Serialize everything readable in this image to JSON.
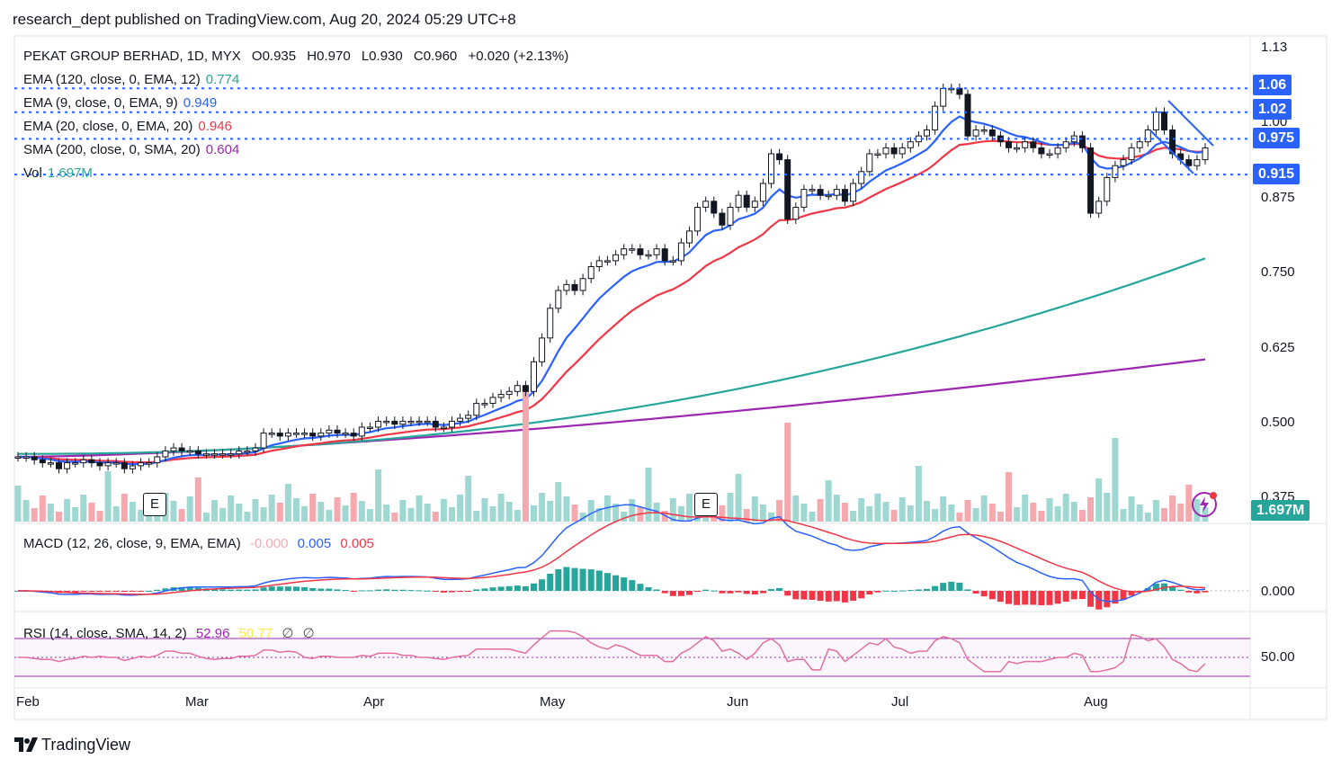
{
  "header": {
    "publisher_line": "research_dept published on TradingView.com, Aug 20, 2024 05:29 UTC+8"
  },
  "symbol_line": {
    "name": "PEKAT GROUP BERHAD, 1D, MYX",
    "open": "O0.935",
    "high": "H0.970",
    "low": "L0.930",
    "close": "C0.960",
    "change": "+0.020 (+2.13%)"
  },
  "indicators": [
    {
      "label": "EMA (120, close, 0, EMA, 12)",
      "value": "0.774",
      "color": "#26a69a"
    },
    {
      "label": "EMA (9, close, 0, EMA, 9)",
      "value": "0.949",
      "color": "#2962ff"
    },
    {
      "label": "EMA (20, close, 0, EMA, 20)",
      "value": "0.946",
      "color": "#f23645"
    },
    {
      "label": "SMA (200, close, 0, SMA, 20)",
      "value": "0.604",
      "color": "#9c27b0"
    },
    {
      "label": "Vol",
      "value": "1.697M",
      "color": "#26a69a"
    }
  ],
  "macd_legend": {
    "label": "MACD (12, 26, close, 9, EMA, EMA)",
    "hist": "-0.000",
    "macd": "0.005",
    "signal": "0.005"
  },
  "rsi_legend": {
    "label": "RSI (14, close, SMA, 14, 2)",
    "rsi": "52.96",
    "ma": "50.77",
    "a": "∅",
    "b": "∅"
  },
  "price_badges": {
    "p106": "1.06",
    "p102": "1.02",
    "p0975": "0.975",
    "p0915": "0.915",
    "vol": "1.697M"
  },
  "y_axis_labels": [
    "1.13",
    "1.00",
    "0.875",
    "0.750",
    "0.625",
    "0.500",
    "0.375"
  ],
  "macd_axis_label": "0.000",
  "rsi_axis_label": "50.00",
  "x_axis_labels": [
    "Feb",
    "Mar",
    "Apr",
    "May",
    "Jun",
    "Jul",
    "Aug"
  ],
  "earnings_marker": "E",
  "brand": "TradingView",
  "colors": {
    "up": "#ffffff",
    "down": "#131722",
    "ema9": "#2962ff",
    "ema20": "#f23645",
    "ema120": "#26a69a",
    "sma200": "#9c27b0",
    "level": "#2962ff"
  },
  "chart_data": {
    "type": "candlestick",
    "title": "PEKAT GROUP BERHAD, 1D, MYX",
    "ylim": [
      0.35,
      1.15
    ],
    "horizontal_levels": [
      1.06,
      1.02,
      0.975,
      0.915
    ],
    "x_month_labels": [
      "Feb",
      "Mar",
      "Apr",
      "May",
      "Jun",
      "Jul",
      "Aug"
    ],
    "close_series": [
      0.44,
      0.44,
      0.435,
      0.43,
      0.43,
      0.42,
      0.43,
      0.43,
      0.435,
      0.43,
      0.425,
      0.43,
      0.43,
      0.42,
      0.425,
      0.43,
      0.43,
      0.44,
      0.45,
      0.455,
      0.45,
      0.45,
      0.445,
      0.445,
      0.445,
      0.445,
      0.445,
      0.45,
      0.45,
      0.455,
      0.48,
      0.48,
      0.475,
      0.48,
      0.48,
      0.48,
      0.475,
      0.48,
      0.485,
      0.48,
      0.48,
      0.475,
      0.49,
      0.49,
      0.5,
      0.5,
      0.495,
      0.5,
      0.5,
      0.5,
      0.5,
      0.49,
      0.49,
      0.5,
      0.505,
      0.51,
      0.53,
      0.53,
      0.54,
      0.545,
      0.55,
      0.56,
      0.55,
      0.6,
      0.64,
      0.69,
      0.72,
      0.73,
      0.72,
      0.74,
      0.76,
      0.77,
      0.77,
      0.78,
      0.79,
      0.79,
      0.78,
      0.78,
      0.79,
      0.77,
      0.77,
      0.8,
      0.82,
      0.86,
      0.87,
      0.85,
      0.83,
      0.86,
      0.88,
      0.86,
      0.87,
      0.9,
      0.95,
      0.94,
      0.84,
      0.86,
      0.89,
      0.89,
      0.88,
      0.88,
      0.89,
      0.87,
      0.9,
      0.92,
      0.95,
      0.95,
      0.96,
      0.95,
      0.96,
      0.97,
      0.98,
      0.99,
      1.03,
      1.06,
      1.06,
      1.05,
      0.98,
      0.99,
      0.99,
      0.98,
      0.97,
      0.96,
      0.96,
      0.97,
      0.96,
      0.95,
      0.95,
      0.96,
      0.97,
      0.98,
      0.96,
      0.85,
      0.87,
      0.91,
      0.93,
      0.94,
      0.96,
      0.97,
      0.99,
      1.02,
      0.99,
      0.95,
      0.94,
      0.93,
      0.94,
      0.96
    ],
    "ema9_end": 0.949,
    "ema20_end": 0.946,
    "ema120_end": 0.774,
    "sma200_end": 0.604,
    "volume_last": "1.697M",
    "macd": {
      "hist": -0.0,
      "macd": 0.005,
      "signal": 0.005
    },
    "rsi": {
      "value": 52.96,
      "ma": 50.77,
      "band_upper": 70,
      "band_lower": 30
    }
  }
}
